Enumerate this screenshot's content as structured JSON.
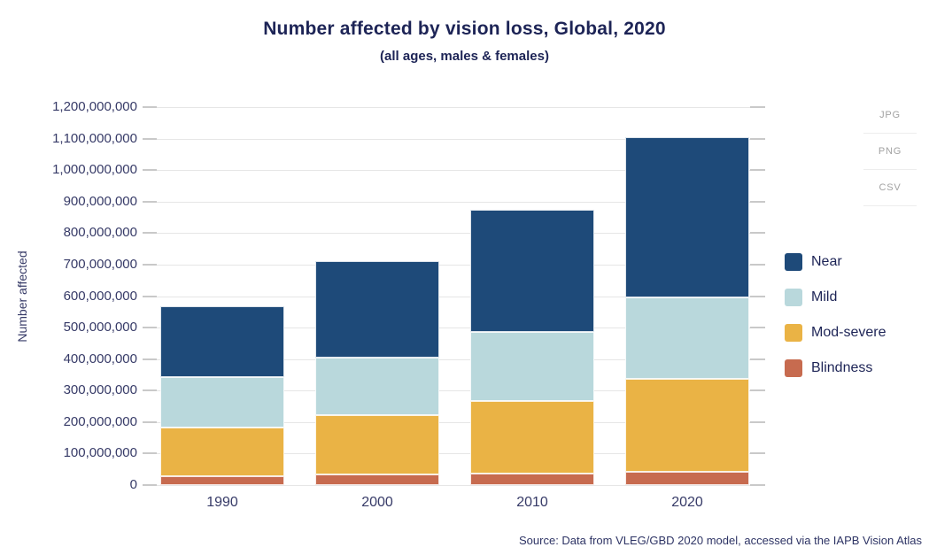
{
  "chart_data": {
    "type": "bar",
    "stacked": true,
    "title": "Number affected by vision loss, Global, 2020",
    "subtitle": "(all ages, males & females)",
    "categories": [
      "1990",
      "2000",
      "2010",
      "2020"
    ],
    "series": [
      {
        "name": "Blindness",
        "color": "#c76b4f",
        "values": [
          28000000,
          33000000,
          38000000,
          43300000
        ]
      },
      {
        "name": "Mod-severe",
        "color": "#eab345",
        "values": [
          155000000,
          188000000,
          230000000,
          294700000
        ]
      },
      {
        "name": "Mild",
        "color": "#b9d8dc",
        "values": [
          160000000,
          184000000,
          218000000,
          257600000
        ]
      },
      {
        "name": "Near",
        "color": "#1e4a79",
        "values": [
          225000000,
          305000000,
          387000000,
          509700000
        ]
      }
    ],
    "xlabel": "",
    "ylabel": "Number affected",
    "ylim": [
      0,
      1200000000
    ],
    "ytick_step": 100000000,
    "ytick_labels": [
      "0",
      "100,000,000",
      "200,000,000",
      "300,000,000",
      "400,000,000",
      "500,000,000",
      "600,000,000",
      "700,000,000",
      "800,000,000",
      "900,000,000",
      "1,000,000,000",
      "1,100,000,000",
      "1,200,000,000"
    ],
    "grid": true,
    "legend_position": "right",
    "legend_order": [
      "Near",
      "Mild",
      "Mod-severe",
      "Blindness"
    ],
    "source": "Source: Data from VLEG/GBD 2020 model, accessed via the IAPB Vision Atlas"
  },
  "export_menu": {
    "items": [
      "JPG",
      "PNG",
      "CSV"
    ]
  }
}
